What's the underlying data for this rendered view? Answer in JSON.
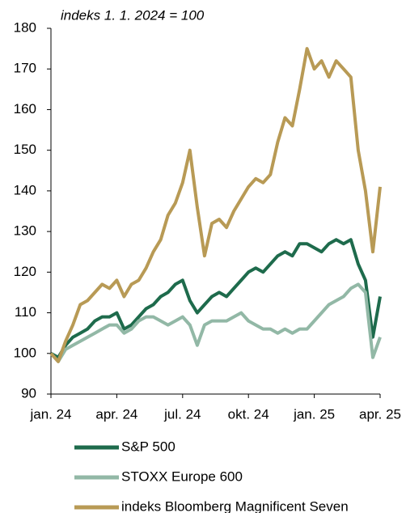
{
  "chart_data": {
    "type": "line",
    "subtitle": "indeks 1. 1. 2024 = 100",
    "categories": [
      "jan. 24",
      null,
      null,
      null,
      null,
      null,
      null,
      null,
      null,
      "apr. 24",
      null,
      null,
      null,
      null,
      null,
      null,
      null,
      null,
      "jul. 24",
      null,
      null,
      null,
      null,
      null,
      null,
      null,
      null,
      "okt. 24",
      null,
      null,
      null,
      null,
      null,
      null,
      null,
      null,
      "jan. 25",
      null,
      null,
      null,
      null,
      null,
      null,
      null,
      null,
      "apr. 25"
    ],
    "series": [
      {
        "name": "S&P 500",
        "color": "#1e6b4c",
        "values": [
          100,
          99,
          102,
          104,
          105,
          106,
          108,
          109,
          109,
          110,
          106,
          107,
          109,
          111,
          112,
          114,
          115,
          117,
          118,
          113,
          110,
          112,
          114,
          115,
          114,
          116,
          118,
          120,
          121,
          120,
          122,
          124,
          125,
          124,
          127,
          127,
          126,
          125,
          127,
          128,
          127,
          128,
          122,
          118,
          104,
          114
        ]
      },
      {
        "name": "STOXX Europe 600",
        "color": "#92b8a6",
        "values": [
          100,
          98,
          101,
          102,
          103,
          104,
          105,
          106,
          107,
          107,
          105,
          106,
          108,
          109,
          109,
          108,
          107,
          108,
          109,
          107,
          102,
          107,
          108,
          108,
          108,
          109,
          110,
          108,
          107,
          106,
          106,
          105,
          106,
          105,
          106,
          106,
          108,
          110,
          112,
          113,
          114,
          116,
          117,
          115,
          99,
          104
        ]
      },
      {
        "name": "indeks Bloomberg Magnificent Seven",
        "color": "#b89a55",
        "values": [
          100,
          98,
          103,
          107,
          112,
          113,
          115,
          117,
          116,
          118,
          114,
          117,
          118,
          121,
          125,
          128,
          134,
          137,
          142,
          150,
          136,
          124,
          132,
          133,
          131,
          135,
          138,
          141,
          143,
          142,
          144,
          152,
          158,
          156,
          165,
          175,
          170,
          172,
          168,
          172,
          170,
          168,
          150,
          140,
          125,
          141
        ]
      }
    ],
    "ylim": [
      90,
      180
    ],
    "yticks": [
      90,
      100,
      110,
      120,
      130,
      140,
      150,
      160,
      170,
      180
    ],
    "grid": false
  }
}
